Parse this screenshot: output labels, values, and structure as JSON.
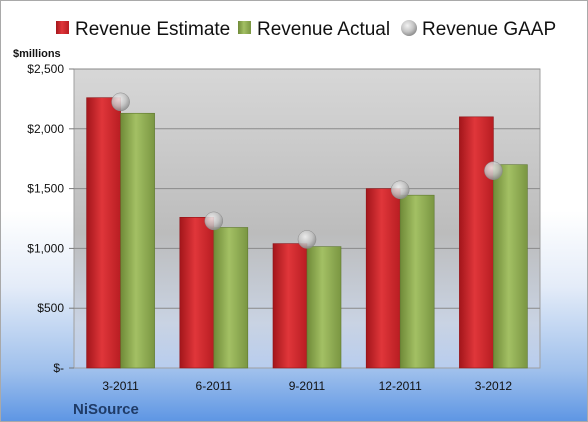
{
  "chart_data": {
    "type": "bar",
    "categories": [
      "3-2011",
      "6-2011",
      "9-2011",
      "12-2011",
      "3-2012"
    ],
    "series": [
      {
        "name": "Revenue Estimate",
        "values": [
          2260,
          1260,
          1040,
          1500,
          2100
        ],
        "color": "#d62a2e"
      },
      {
        "name": "Revenue Actual",
        "values": [
          2130,
          1175,
          1015,
          1445,
          1700
        ],
        "color": "#8fac4e"
      }
    ],
    "gaap": {
      "name": "Revenue GAAP",
      "values": [
        2225,
        1230,
        1075,
        1490,
        1650
      ],
      "color": "#c4c4c4"
    },
    "ylabel": "$millions",
    "yticks": [
      "$-",
      "$500",
      "$1,000",
      "$1,500",
      "$2,000",
      "$2,500"
    ],
    "ylim": [
      0,
      2500
    ],
    "grid": true,
    "legend": "top"
  },
  "company": "NiSource"
}
